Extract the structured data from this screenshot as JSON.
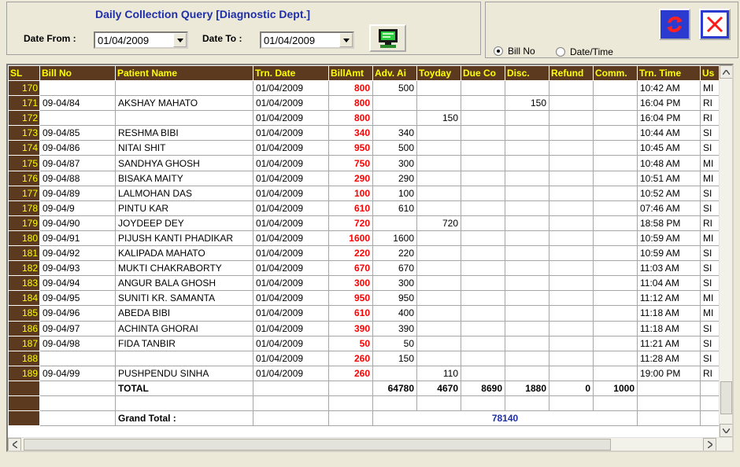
{
  "header": {
    "title": "Daily Collection Query [Diagnostic Dept.]",
    "date_from_label": "Date From :",
    "date_from_value": "01/04/2009",
    "date_to_label": "Date To :",
    "date_to_value": "01/04/2009"
  },
  "options": {
    "bill_no_label": "Bill No",
    "date_time_label": "Date/Time"
  },
  "grid": {
    "columns": [
      "SL",
      "Bill No",
      "Patient Name",
      "Trn. Date",
      "BillAmt",
      "Adv. Ai",
      "Toyday",
      "Due Co",
      "Disc.",
      "Refund",
      "Comm.",
      "Trn. Time",
      "Us"
    ],
    "rows": [
      {
        "sl": "170",
        "bill": "",
        "name": "",
        "date": "01/04/2009",
        "amt": "800",
        "adv": "500",
        "today": "",
        "due": "",
        "disc": "",
        "refund": "",
        "comm": "",
        "time": "10:42 AM",
        "user": "MI"
      },
      {
        "sl": "171",
        "bill": "09-04/84",
        "name": "AKSHAY MAHATO",
        "date": "01/04/2009",
        "amt": "800",
        "adv": "",
        "today": "",
        "due": "",
        "disc": "150",
        "refund": "",
        "comm": "",
        "time": "16:04 PM",
        "user": "RI"
      },
      {
        "sl": "172",
        "bill": "",
        "name": "",
        "date": "01/04/2009",
        "amt": "800",
        "adv": "",
        "today": "150",
        "due": "",
        "disc": "",
        "refund": "",
        "comm": "",
        "time": "16:04 PM",
        "user": "RI"
      },
      {
        "sl": "173",
        "bill": "09-04/85",
        "name": "RESHMA BIBI",
        "date": "01/04/2009",
        "amt": "340",
        "adv": "340",
        "today": "",
        "due": "",
        "disc": "",
        "refund": "",
        "comm": "",
        "time": "10:44 AM",
        "user": "SI"
      },
      {
        "sl": "174",
        "bill": "09-04/86",
        "name": "NITAI SHIT",
        "date": "01/04/2009",
        "amt": "950",
        "adv": "500",
        "today": "",
        "due": "",
        "disc": "",
        "refund": "",
        "comm": "",
        "time": "10:45 AM",
        "user": "SI"
      },
      {
        "sl": "175",
        "bill": "09-04/87",
        "name": "SANDHYA GHOSH",
        "date": "01/04/2009",
        "amt": "750",
        "adv": "300",
        "today": "",
        "due": "",
        "disc": "",
        "refund": "",
        "comm": "",
        "time": "10:48 AM",
        "user": "MI"
      },
      {
        "sl": "176",
        "bill": "09-04/88",
        "name": "BISAKA MAITY",
        "date": "01/04/2009",
        "amt": "290",
        "adv": "290",
        "today": "",
        "due": "",
        "disc": "",
        "refund": "",
        "comm": "",
        "time": "10:51 AM",
        "user": "MI"
      },
      {
        "sl": "177",
        "bill": "09-04/89",
        "name": "LALMOHAN DAS",
        "date": "01/04/2009",
        "amt": "100",
        "adv": "100",
        "today": "",
        "due": "",
        "disc": "",
        "refund": "",
        "comm": "",
        "time": "10:52 AM",
        "user": "SI"
      },
      {
        "sl": "178",
        "bill": "09-04/9",
        "name": "PINTU KAR",
        "date": "01/04/2009",
        "amt": "610",
        "adv": "610",
        "today": "",
        "due": "",
        "disc": "",
        "refund": "",
        "comm": "",
        "time": "07:46 AM",
        "user": "SI"
      },
      {
        "sl": "179",
        "bill": "09-04/90",
        "name": "JOYDEEP DEY",
        "date": "01/04/2009",
        "amt": "720",
        "adv": "",
        "today": "720",
        "due": "",
        "disc": "",
        "refund": "",
        "comm": "",
        "time": "18:58 PM",
        "user": "RI"
      },
      {
        "sl": "180",
        "bill": "09-04/91",
        "name": "PIJUSH KANTI  PHADIKAR",
        "date": "01/04/2009",
        "amt": "1600",
        "adv": "1600",
        "today": "",
        "due": "",
        "disc": "",
        "refund": "",
        "comm": "",
        "time": "10:59 AM",
        "user": "MI"
      },
      {
        "sl": "181",
        "bill": "09-04/92",
        "name": "KALIPADA MAHATO",
        "date": "01/04/2009",
        "amt": "220",
        "adv": "220",
        "today": "",
        "due": "",
        "disc": "",
        "refund": "",
        "comm": "",
        "time": "10:59 AM",
        "user": "SI"
      },
      {
        "sl": "182",
        "bill": "09-04/93",
        "name": "MUKTI CHAKRABORTY",
        "date": "01/04/2009",
        "amt": "670",
        "adv": "670",
        "today": "",
        "due": "",
        "disc": "",
        "refund": "",
        "comm": "",
        "time": "11:03 AM",
        "user": "SI"
      },
      {
        "sl": "183",
        "bill": "09-04/94",
        "name": "ANGUR BALA GHOSH",
        "date": "01/04/2009",
        "amt": "300",
        "adv": "300",
        "today": "",
        "due": "",
        "disc": "",
        "refund": "",
        "comm": "",
        "time": "11:04 AM",
        "user": "SI"
      },
      {
        "sl": "184",
        "bill": "09-04/95",
        "name": "SUNITI  KR.  SAMANTA",
        "date": "01/04/2009",
        "amt": "950",
        "adv": "950",
        "today": "",
        "due": "",
        "disc": "",
        "refund": "",
        "comm": "",
        "time": "11:12 AM",
        "user": "MI"
      },
      {
        "sl": "185",
        "bill": "09-04/96",
        "name": "ABEDA  BIBI",
        "date": "01/04/2009",
        "amt": "610",
        "adv": "400",
        "today": "",
        "due": "",
        "disc": "",
        "refund": "",
        "comm": "",
        "time": "11:18 AM",
        "user": "MI"
      },
      {
        "sl": "186",
        "bill": "09-04/97",
        "name": "ACHINTA GHORAI",
        "date": "01/04/2009",
        "amt": "390",
        "adv": "390",
        "today": "",
        "due": "",
        "disc": "",
        "refund": "",
        "comm": "",
        "time": "11:18 AM",
        "user": "SI"
      },
      {
        "sl": "187",
        "bill": "09-04/98",
        "name": "FIDA TANBIR",
        "date": "01/04/2009",
        "amt": "50",
        "adv": "50",
        "today": "",
        "due": "",
        "disc": "",
        "refund": "",
        "comm": "",
        "time": "11:21 AM",
        "user": "SI"
      },
      {
        "sl": "188",
        "bill": "",
        "name": "",
        "date": "01/04/2009",
        "amt": "260",
        "adv": "150",
        "today": "",
        "due": "",
        "disc": "",
        "refund": "",
        "comm": "",
        "time": "11:28 AM",
        "user": "SI"
      },
      {
        "sl": "189",
        "bill": "09-04/99",
        "name": "PUSHPENDU SINHA",
        "date": "01/04/2009",
        "amt": "260",
        "adv": "",
        "today": "110",
        "due": "",
        "disc": "",
        "refund": "",
        "comm": "",
        "time": "19:00 PM",
        "user": "RI"
      }
    ],
    "total": {
      "label": "TOTAL",
      "adv": "64780",
      "today": "4670",
      "due": "8690",
      "disc": "1880",
      "refund": "0",
      "comm": "1000"
    },
    "grand_total": {
      "label": "Grand Total :",
      "value": "78140"
    }
  },
  "colors": {
    "header_bg": "#5b3a1f",
    "header_text": "#ffff00",
    "amount": "#ff0000",
    "title": "#1f2fa8"
  },
  "icons": [
    "monitor-icon",
    "refresh-icon",
    "close-icon",
    "chevron-down-icon",
    "arrow-up-icon",
    "arrow-down-icon",
    "arrow-left-icon",
    "arrow-right-icon"
  ]
}
